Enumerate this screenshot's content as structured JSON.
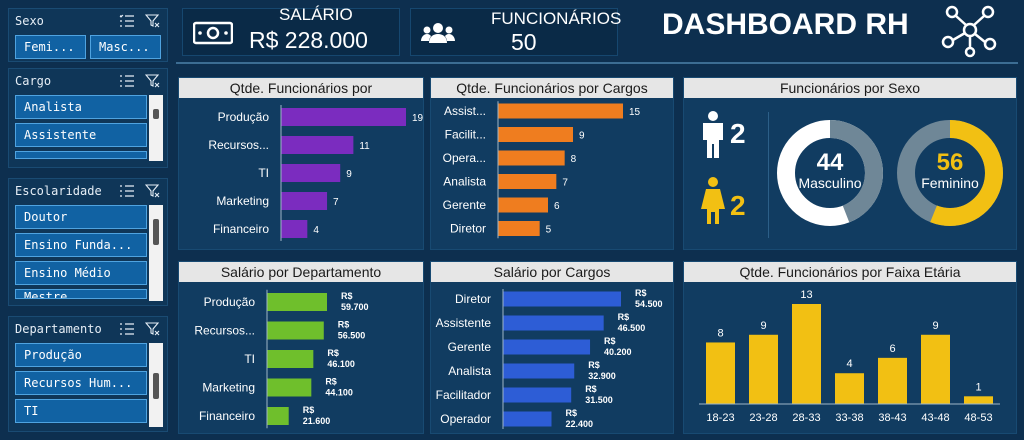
{
  "header": {
    "title": "DASHBOARD RH",
    "kpi_salary": {
      "label": "SALÁRIO",
      "value": "R$ 228.000"
    },
    "kpi_employees": {
      "label": "FUNCIONÁRIOS",
      "value": "50"
    }
  },
  "slicers": {
    "sexo": {
      "title": "Sexo",
      "items": [
        "Femi...",
        "Masc..."
      ]
    },
    "cargo": {
      "title": "Cargo",
      "items": [
        "Analista",
        "Assistente"
      ]
    },
    "escolaridade": {
      "title": "Escolaridade",
      "items": [
        "Doutor",
        "Ensino Funda...",
        "Ensino Médio",
        "Mestre"
      ]
    },
    "departamento": {
      "title": "Departamento",
      "items": [
        "Produção",
        "Recursos Hum...",
        "TI"
      ]
    }
  },
  "colors": {
    "purple": "#7b2cbf",
    "orange": "#ef7d1f",
    "green": "#6fbf2c",
    "blue": "#2d5dd6",
    "yellow": "#f2c013",
    "gray": "#6f8797"
  },
  "sexo_panel": {
    "title": "Funcionários por Sexo",
    "male_count": "2",
    "female_count": "2",
    "donut_male": {
      "value": "44",
      "label": "Masculino",
      "percent": 44
    },
    "donut_female": {
      "value": "56",
      "label": "Feminino",
      "percent": 56
    }
  },
  "chart_data": [
    {
      "id": "func_dept",
      "type": "bar",
      "orientation": "horizontal",
      "title": "Qtde. Funcionários por",
      "categories": [
        "Produção",
        "Recursos...",
        "TI",
        "Marketing",
        "Financeiro"
      ],
      "values": [
        19,
        11,
        9,
        7,
        4
      ],
      "labels": [
        "19",
        "11",
        "9",
        "7",
        "4"
      ]
    },
    {
      "id": "func_cargo",
      "type": "bar",
      "orientation": "horizontal",
      "title": "Qtde. Funcionários por Cargos",
      "categories": [
        "Assist...",
        "Facilit...",
        "Opera...",
        "Analista",
        "Gerente",
        "Diretor"
      ],
      "values": [
        15,
        9,
        8,
        7,
        6,
        5
      ],
      "labels": [
        "15",
        "9",
        "8",
        "7",
        "6",
        "5"
      ]
    },
    {
      "id": "sal_dept",
      "type": "bar",
      "orientation": "horizontal",
      "title": "Salário por Departamento",
      "categories": [
        "Produção",
        "Recursos...",
        "TI",
        "Marketing",
        "Financeiro"
      ],
      "values": [
        59700,
        56500,
        46100,
        44100,
        21600
      ],
      "labels": [
        [
          "R$",
          "59.700"
        ],
        [
          "R$",
          "56.500"
        ],
        [
          "R$",
          "46.100"
        ],
        [
          "R$",
          "44.100"
        ],
        [
          "R$",
          "21.600"
        ]
      ]
    },
    {
      "id": "sal_cargo",
      "type": "bar",
      "orientation": "horizontal",
      "title": "Salário por Cargos",
      "categories": [
        "Diretor",
        "Assistente",
        "Gerente",
        "Analista",
        "Facilitador",
        "Operador"
      ],
      "values": [
        54500,
        46500,
        40200,
        32900,
        31500,
        22400
      ],
      "labels": [
        [
          "R$",
          "54.500"
        ],
        [
          "R$",
          "46.500"
        ],
        [
          "R$",
          "40.200"
        ],
        [
          "R$",
          "32.900"
        ],
        [
          "R$",
          "31.500"
        ],
        [
          "R$",
          "22.400"
        ]
      ]
    },
    {
      "id": "faixa",
      "type": "bar",
      "orientation": "vertical",
      "title": "Qtde. Funcionários por Faixa Etária",
      "categories": [
        "18-23",
        "23-28",
        "28-33",
        "33-38",
        "38-43",
        "43-48",
        "48-53"
      ],
      "values": [
        8,
        9,
        13,
        4,
        6,
        9,
        1
      ],
      "labels": [
        "8",
        "9",
        "13",
        "4",
        "6",
        "9",
        "1"
      ]
    }
  ]
}
